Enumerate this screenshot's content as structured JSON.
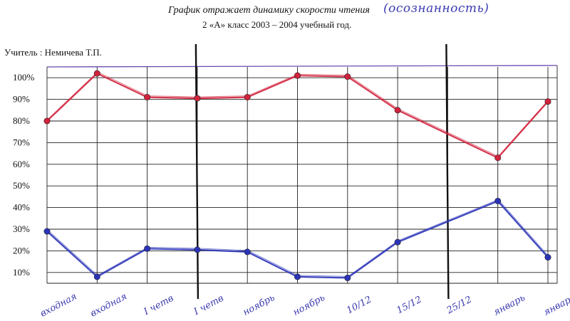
{
  "header": {
    "title": "График отражает динамику скорости чтения",
    "title_handwritten": "(осознанность)",
    "subtitle": "2 «А» класс 2003 – 2004 учебный год.",
    "teacher": "Учитель : Немичева Т.П."
  },
  "chart_data": {
    "type": "line",
    "y_ticks": [
      "10%",
      "20%",
      "30%",
      "40%",
      "50%",
      "60%",
      "70%",
      "80%",
      "90%",
      "100%"
    ],
    "ylim": [
      5,
      105
    ],
    "categories": [
      "входная",
      "входная",
      "I четв",
      "I четв",
      "ноябрь",
      "ноябрь",
      "10/12",
      "15/12",
      "25/12",
      "январь",
      "январь"
    ],
    "series": [
      {
        "name": "",
        "color": "#d2223c",
        "values": [
          80,
          102,
          91,
          90.5,
          91,
          101,
          100.5,
          85,
          null,
          63,
          89
        ]
      },
      {
        "name": "",
        "color": "#2b34b8",
        "values": [
          29,
          8,
          21,
          20.5,
          19.5,
          8,
          7.5,
          24,
          null,
          43,
          17
        ]
      }
    ],
    "vertical_markers": [
      3,
      8
    ],
    "grid": true,
    "legend": "none"
  }
}
